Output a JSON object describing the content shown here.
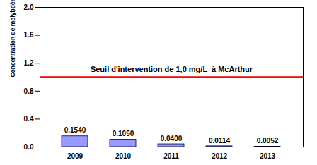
{
  "chart_data": {
    "type": "bar",
    "y_label": "Concentration de molybdène à McClean Lake (mg/L)",
    "categories": [
      "2009",
      "2010",
      "2011",
      "2012",
      "2013"
    ],
    "values": [
      0.154,
      0.105,
      0.04,
      0.0114,
      0.0052
    ],
    "value_labels": [
      "0.1540",
      "0.1050",
      "0.0400",
      "0.0114",
      "0.0052"
    ],
    "data_labels": true,
    "color": "#9999ff",
    "ylim": [
      0,
      2
    ],
    "yticks": [
      {
        "value": 0,
        "label": "0.0"
      },
      0.4,
      0.8,
      1.2,
      1.6,
      {
        "value": 2,
        "label": "2.0"
      }
    ],
    "grid": false,
    "reference_line": {
      "value": 1.0,
      "label": "Seuil d'intervention de 1,0 mg/L  à McArthur",
      "color": "#ff0000"
    }
  }
}
